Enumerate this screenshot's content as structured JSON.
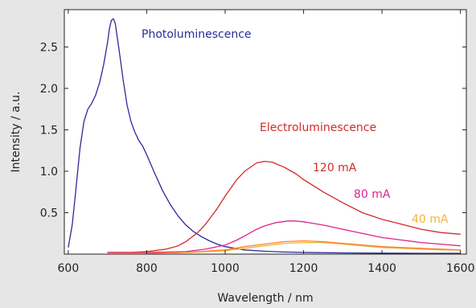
{
  "chart_data": {
    "type": "line",
    "xlabel": "Wavelength / nm",
    "ylabel": "Intensity / a.u.",
    "xlim": [
      590,
      1615
    ],
    "ylim": [
      0,
      2.95
    ],
    "x_ticks": [
      600,
      800,
      1000,
      1200,
      1400,
      1600
    ],
    "y_ticks": [
      0.5,
      1.0,
      1.5,
      2.0,
      2.5
    ],
    "y_tick_labels": [
      "0.5",
      "1.0",
      "1.5",
      "2.0",
      "2.5"
    ],
    "grid": false,
    "series": [
      {
        "name": "Photoluminescence",
        "color": "#2b2b9a",
        "x": [
          600,
          610,
          620,
          630,
          640,
          650,
          660,
          670,
          680,
          690,
          700,
          705,
          710,
          715,
          720,
          730,
          740,
          750,
          760,
          770,
          780,
          790,
          800,
          820,
          840,
          860,
          880,
          900,
          920,
          940,
          960,
          980,
          1000,
          1050,
          1100,
          1150,
          1200,
          1300,
          1400,
          1500,
          1600
        ],
        "y": [
          0.08,
          0.35,
          0.8,
          1.28,
          1.6,
          1.75,
          1.82,
          1.92,
          2.07,
          2.28,
          2.55,
          2.72,
          2.82,
          2.84,
          2.78,
          2.45,
          2.1,
          1.8,
          1.6,
          1.47,
          1.37,
          1.3,
          1.2,
          0.98,
          0.77,
          0.6,
          0.46,
          0.35,
          0.27,
          0.21,
          0.16,
          0.12,
          0.09,
          0.05,
          0.035,
          0.025,
          0.02,
          0.015,
          0.012,
          0.01,
          0.01
        ]
      },
      {
        "name": "120 mA",
        "color": "#d42a2a",
        "x": [
          700,
          760,
          800,
          850,
          880,
          900,
          930,
          950,
          980,
          1000,
          1030,
          1050,
          1080,
          1100,
          1120,
          1150,
          1180,
          1200,
          1250,
          1300,
          1350,
          1400,
          1450,
          1500,
          1550,
          1600
        ],
        "y": [
          0.02,
          0.02,
          0.03,
          0.06,
          0.1,
          0.15,
          0.26,
          0.36,
          0.55,
          0.7,
          0.9,
          1.0,
          1.1,
          1.12,
          1.11,
          1.05,
          0.97,
          0.9,
          0.75,
          0.62,
          0.5,
          0.42,
          0.36,
          0.3,
          0.26,
          0.24
        ]
      },
      {
        "name": "80 mA",
        "color": "#e0228a",
        "x": [
          700,
          800,
          900,
          950,
          1000,
          1030,
          1050,
          1080,
          1100,
          1130,
          1160,
          1180,
          1200,
          1250,
          1300,
          1350,
          1400,
          1450,
          1500,
          1550,
          1600
        ],
        "y": [
          0.02,
          0.02,
          0.03,
          0.06,
          0.11,
          0.17,
          0.22,
          0.3,
          0.34,
          0.38,
          0.4,
          0.4,
          0.39,
          0.35,
          0.3,
          0.25,
          0.2,
          0.17,
          0.14,
          0.12,
          0.1
        ]
      },
      {
        "name": "40 mA",
        "color": "#f0b43c",
        "x": [
          700,
          800,
          900,
          1000,
          1050,
          1100,
          1150,
          1200,
          1250,
          1300,
          1350,
          1400,
          1450,
          1500,
          1550,
          1600
        ],
        "y": [
          0.01,
          0.01,
          0.02,
          0.04,
          0.07,
          0.1,
          0.13,
          0.14,
          0.14,
          0.12,
          0.1,
          0.08,
          0.07,
          0.06,
          0.05,
          0.05
        ]
      },
      {
        "name": "",
        "color": "#ff7f2a",
        "x": [
          700,
          800,
          900,
          1000,
          1050,
          1100,
          1150,
          1200,
          1250,
          1300,
          1350,
          1400,
          1450,
          1500,
          1550,
          1600
        ],
        "y": [
          0.01,
          0.01,
          0.02,
          0.05,
          0.09,
          0.12,
          0.15,
          0.16,
          0.15,
          0.13,
          0.11,
          0.09,
          0.08,
          0.07,
          0.06,
          0.05
        ]
      }
    ],
    "annotations": [
      {
        "text": "Photoluminescence",
        "color": "#2b2b9a"
      },
      {
        "text": "Electroluminescence",
        "color": "#d42a2a"
      },
      {
        "text": "120 mA",
        "color": "#d42a2a"
      },
      {
        "text": "80 mA",
        "color": "#e0228a"
      },
      {
        "text": "40 mA",
        "color": "#f0b43c"
      }
    ]
  }
}
